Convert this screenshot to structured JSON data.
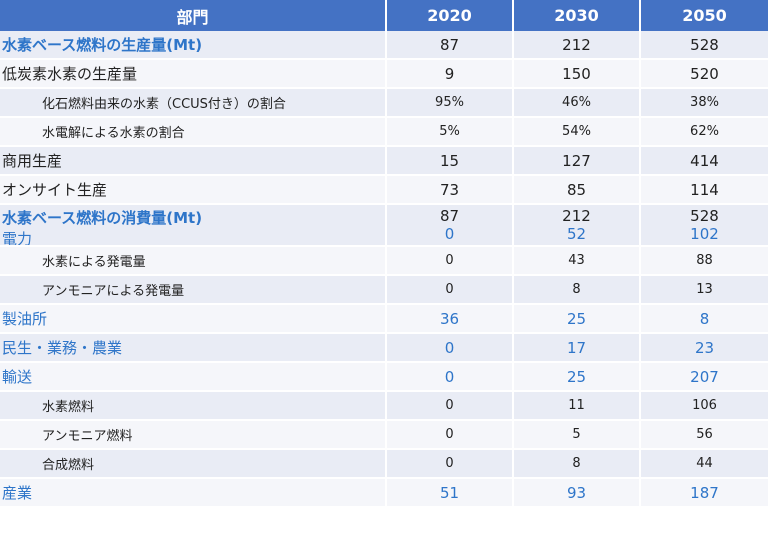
{
  "header": {
    "sector": "部門",
    "y2020": "2020",
    "y2030": "2030",
    "y2050": "2050"
  },
  "rows": [
    {
      "label": "水素ベース燃料の生産量(Mt)",
      "v2020": "87",
      "v2030": "212",
      "v2050": "528"
    },
    {
      "label": "低炭素水素の生産量",
      "v2020": "9",
      "v2030": "150",
      "v2050": "520"
    },
    {
      "label": "化石燃料由来の水素（CCUS付き）の割合",
      "v2020": "95%",
      "v2030": "46%",
      "v2050": "38%"
    },
    {
      "label": "水電解による水素の割合",
      "v2020": "5%",
      "v2030": "54%",
      "v2050": "62%"
    },
    {
      "label": "商用生産",
      "v2020": "15",
      "v2030": "127",
      "v2050": "414"
    },
    {
      "label": "オンサイト生産",
      "v2020": "73",
      "v2030": "85",
      "v2050": "114"
    },
    {
      "label": "水素ベース燃料の消費量(Mt)",
      "v2020": "87",
      "v2030": "212",
      "v2050": "528"
    },
    {
      "label": "電力",
      "v2020": "0",
      "v2030": "52",
      "v2050": "102"
    },
    {
      "label": "水素による発電量",
      "v2020": "0",
      "v2030": "43",
      "v2050": "88"
    },
    {
      "label": "アンモニアによる発電量",
      "v2020": "0",
      "v2030": "8",
      "v2050": "13"
    },
    {
      "label": "製油所",
      "v2020": "36",
      "v2030": "25",
      "v2050": "8"
    },
    {
      "label": "民生・業務・農業",
      "v2020": "0",
      "v2030": "17",
      "v2050": "23"
    },
    {
      "label": "輸送",
      "v2020": "0",
      "v2030": "25",
      "v2050": "207"
    },
    {
      "label": "水素燃料",
      "v2020": "0",
      "v2030": "11",
      "v2050": "106"
    },
    {
      "label": "アンモニア燃料",
      "v2020": "0",
      "v2030": "5",
      "v2050": "56"
    },
    {
      "label": "合成燃料",
      "v2020": "0",
      "v2030": "8",
      "v2050": "44"
    },
    {
      "label": "産業",
      "v2020": "51",
      "v2030": "93",
      "v2050": "187"
    }
  ],
  "colors": {
    "header_bg": "#4472c4",
    "accent_text": "#2e75c9",
    "row_odd": "#e9ecf5",
    "row_even": "#f5f6fa"
  }
}
